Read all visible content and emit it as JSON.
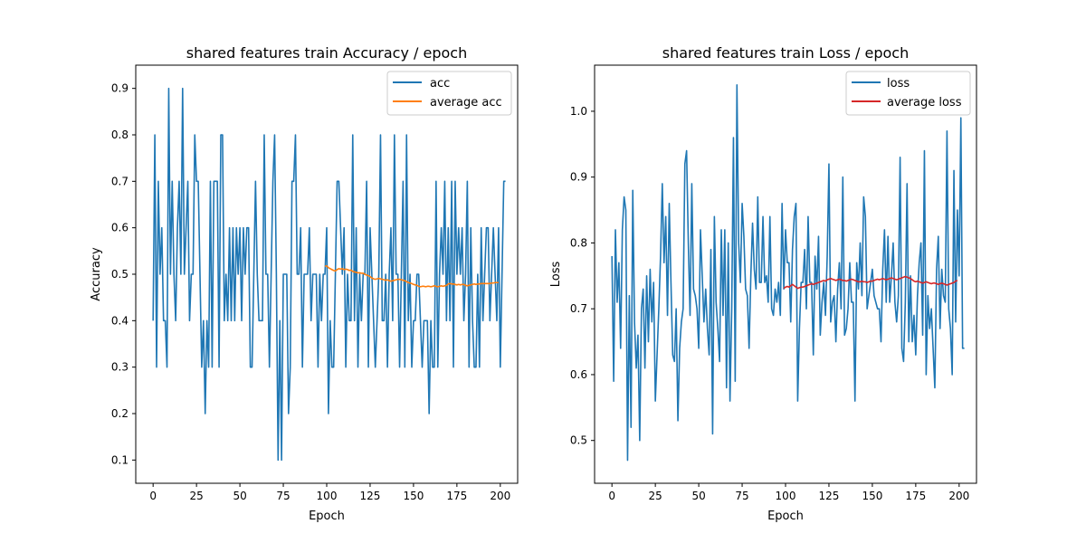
{
  "chart_data": [
    {
      "type": "line",
      "title": "shared features train Accuracy / epoch",
      "xlabel": "Epoch",
      "ylabel": "Accuracy",
      "xlim": [
        -10,
        210
      ],
      "ylim": [
        0.05,
        0.95
      ],
      "xticks": [
        0,
        25,
        50,
        75,
        100,
        125,
        150,
        175,
        200
      ],
      "yticks": [
        0.1,
        0.2,
        0.3,
        0.4,
        0.5,
        0.6,
        0.7,
        0.8,
        0.9
      ],
      "ytick_decimals": 1,
      "grid": false,
      "legend_placement": "top-right",
      "series": [
        {
          "name": "acc",
          "color": "#1f77b4",
          "x_start": 0,
          "values": [
            0.4,
            0.8,
            0.3,
            0.7,
            0.5,
            0.6,
            0.4,
            0.4,
            0.3,
            0.9,
            0.5,
            0.7,
            0.5,
            0.4,
            0.6,
            0.7,
            0.5,
            0.9,
            0.5,
            0.6,
            0.7,
            0.4,
            0.5,
            0.5,
            0.8,
            0.7,
            0.7,
            0.5,
            0.3,
            0.4,
            0.2,
            0.4,
            0.3,
            0.7,
            0.3,
            0.7,
            0.7,
            0.7,
            0.3,
            0.8,
            0.8,
            0.4,
            0.5,
            0.4,
            0.6,
            0.4,
            0.6,
            0.4,
            0.6,
            0.5,
            0.6,
            0.4,
            0.6,
            0.5,
            0.6,
            0.6,
            0.3,
            0.3,
            0.5,
            0.7,
            0.5,
            0.4,
            0.4,
            0.4,
            0.8,
            0.5,
            0.5,
            0.3,
            0.5,
            0.7,
            0.8,
            0.5,
            0.1,
            0.4,
            0.1,
            0.5,
            0.5,
            0.5,
            0.2,
            0.3,
            0.7,
            0.7,
            0.8,
            0.5,
            0.5,
            0.6,
            0.3,
            0.5,
            0.5,
            0.5,
            0.6,
            0.4,
            0.5,
            0.5,
            0.5,
            0.3,
            0.5,
            0.4,
            0.5,
            0.5,
            0.6,
            0.2,
            0.4,
            0.3,
            0.3,
            0.5,
            0.7,
            0.7,
            0.6,
            0.5,
            0.6,
            0.3,
            0.5,
            0.4,
            0.4,
            0.8,
            0.4,
            0.6,
            0.3,
            0.5,
            0.4,
            0.5,
            0.5,
            0.7,
            0.3,
            0.6,
            0.5,
            0.4,
            0.3,
            0.4,
            0.5,
            0.8,
            0.4,
            0.4,
            0.5,
            0.3,
            0.5,
            0.6,
            0.4,
            0.8,
            0.5,
            0.5,
            0.3,
            0.5,
            0.7,
            0.3,
            0.8,
            0.4,
            0.5,
            0.3,
            0.4,
            0.4,
            0.5,
            0.5,
            0.4,
            0.3,
            0.4,
            0.4,
            0.4,
            0.2,
            0.4,
            0.3,
            0.3,
            0.7,
            0.3,
            0.5,
            0.6,
            0.5,
            0.7,
            0.4,
            0.6,
            0.4,
            0.7,
            0.3,
            0.7,
            0.5,
            0.6,
            0.5,
            0.6,
            0.4,
            0.5,
            0.7,
            0.3,
            0.6,
            0.4,
            0.3,
            0.3,
            0.5,
            0.3,
            0.6,
            0.4,
            0.5,
            0.6,
            0.6,
            0.4,
            0.5,
            0.6,
            0.5,
            0.4,
            0.6,
            0.3,
            0.5,
            0.7,
            0.7
          ]
        },
        {
          "name": "average acc",
          "color": "#ff7f0e",
          "x_start": 99,
          "values": [
            0.517,
            0.518,
            0.514,
            0.512,
            0.51,
            0.508,
            0.507,
            0.51,
            0.512,
            0.511,
            0.512,
            0.51,
            0.511,
            0.51,
            0.508,
            0.509,
            0.506,
            0.505,
            0.504,
            0.503,
            0.503,
            0.502,
            0.502,
            0.5,
            0.498,
            0.497,
            0.495,
            0.492,
            0.49,
            0.489,
            0.49,
            0.491,
            0.49,
            0.489,
            0.488,
            0.487,
            0.488,
            0.486,
            0.485,
            0.486,
            0.487,
            0.488,
            0.489,
            0.489,
            0.488,
            0.487,
            0.486,
            0.484,
            0.482,
            0.481,
            0.48,
            0.478,
            0.477,
            0.476,
            0.474,
            0.473,
            0.474,
            0.474,
            0.473,
            0.474,
            0.474,
            0.473,
            0.474,
            0.475,
            0.474,
            0.473,
            0.474,
            0.475,
            0.474,
            0.475,
            0.476,
            0.479,
            0.48,
            0.479,
            0.479,
            0.478,
            0.477,
            0.478,
            0.477,
            0.478,
            0.478,
            0.476,
            0.475,
            0.476,
            0.477,
            0.478,
            0.479,
            0.478,
            0.479,
            0.479,
            0.48,
            0.48,
            0.48,
            0.48,
            0.48,
            0.48,
            0.481,
            0.481,
            0.482,
            0.482,
            0.482
          ]
        }
      ]
    },
    {
      "type": "line",
      "title": "shared features train Loss / epoch",
      "xlabel": "Epoch",
      "ylabel": "Loss",
      "xlim": [
        -10,
        210
      ],
      "ylim": [
        0.435,
        1.07
      ],
      "xticks": [
        0,
        25,
        50,
        75,
        100,
        125,
        150,
        175,
        200
      ],
      "yticks": [
        0.5,
        0.6,
        0.7,
        0.8,
        0.9,
        1.0
      ],
      "ytick_decimals": 1,
      "grid": false,
      "legend_placement": "top-right",
      "series": [
        {
          "name": "loss",
          "color": "#1f77b4",
          "x_start": 0,
          "values": [
            0.78,
            0.59,
            0.82,
            0.71,
            0.77,
            0.64,
            0.82,
            0.87,
            0.85,
            0.47,
            0.72,
            0.52,
            0.88,
            0.68,
            0.61,
            0.66,
            0.5,
            0.7,
            0.73,
            0.61,
            0.75,
            0.65,
            0.76,
            0.68,
            0.74,
            0.56,
            0.63,
            0.7,
            0.78,
            0.89,
            0.77,
            0.84,
            0.69,
            0.86,
            0.74,
            0.63,
            0.62,
            0.7,
            0.53,
            0.64,
            0.68,
            0.7,
            0.92,
            0.94,
            0.8,
            0.69,
            0.89,
            0.73,
            0.72,
            0.7,
            0.64,
            0.82,
            0.75,
            0.68,
            0.73,
            0.67,
            0.63,
            0.79,
            0.51,
            0.84,
            0.71,
            0.67,
            0.62,
            0.82,
            0.69,
            0.82,
            0.58,
            0.8,
            0.56,
            0.7,
            0.96,
            0.59,
            1.04,
            0.8,
            0.74,
            0.86,
            0.81,
            0.73,
            0.72,
            0.64,
            0.75,
            0.83,
            0.76,
            0.73,
            0.87,
            0.74,
            0.74,
            0.84,
            0.74,
            0.75,
            0.71,
            0.84,
            0.7,
            0.69,
            0.73,
            0.71,
            0.74,
            0.69,
            0.86,
            0.73,
            0.82,
            0.77,
            0.77,
            0.68,
            0.79,
            0.84,
            0.86,
            0.56,
            0.67,
            0.74,
            0.74,
            0.79,
            0.7,
            0.84,
            0.74,
            0.74,
            0.63,
            0.78,
            0.73,
            0.81,
            0.66,
            0.71,
            0.74,
            0.69,
            0.78,
            0.92,
            0.68,
            0.71,
            0.72,
            0.65,
            0.73,
            0.77,
            0.7,
            0.9,
            0.66,
            0.67,
            0.7,
            0.77,
            0.71,
            0.71,
            0.56,
            0.77,
            0.73,
            0.8,
            0.72,
            0.87,
            0.84,
            0.7,
            0.72,
            0.74,
            0.76,
            0.72,
            0.71,
            0.7,
            0.7,
            0.65,
            0.76,
            0.82,
            0.71,
            0.81,
            0.71,
            0.75,
            0.8,
            0.71,
            0.68,
            0.72,
            0.93,
            0.64,
            0.62,
            0.71,
            0.89,
            0.65,
            0.75,
            0.65,
            0.69,
            0.63,
            0.72,
            0.77,
            0.8,
            0.66,
            0.94,
            0.6,
            0.72,
            0.67,
            0.7,
            0.64,
            0.58,
            0.76,
            0.81,
            0.67,
            0.76,
            0.72,
            0.71,
            0.97,
            0.7,
            0.67,
            0.6,
            0.91,
            0.68,
            0.85,
            0.75,
            0.99,
            0.64,
            0.64
          ]
        },
        {
          "name": "average loss",
          "color": "#d62728",
          "x_start": 99,
          "values": [
            0.731,
            0.733,
            0.734,
            0.733,
            0.735,
            0.737,
            0.735,
            0.733,
            0.731,
            0.732,
            0.733,
            0.733,
            0.734,
            0.735,
            0.736,
            0.737,
            0.738,
            0.737,
            0.738,
            0.739,
            0.74,
            0.741,
            0.742,
            0.743,
            0.742,
            0.744,
            0.745,
            0.746,
            0.745,
            0.744,
            0.743,
            0.744,
            0.745,
            0.744,
            0.743,
            0.743,
            0.742,
            0.743,
            0.744,
            0.745,
            0.744,
            0.743,
            0.742,
            0.741,
            0.741,
            0.742,
            0.741,
            0.741,
            0.74,
            0.741,
            0.742,
            0.742,
            0.743,
            0.744,
            0.745,
            0.744,
            0.745,
            0.746,
            0.745,
            0.744,
            0.745,
            0.746,
            0.747,
            0.746,
            0.745,
            0.744,
            0.745,
            0.746,
            0.747,
            0.748,
            0.749,
            0.748,
            0.747,
            0.746,
            0.744,
            0.742,
            0.741,
            0.742,
            0.741,
            0.74,
            0.739,
            0.74,
            0.741,
            0.74,
            0.739,
            0.738,
            0.739,
            0.739,
            0.738,
            0.737,
            0.738,
            0.739,
            0.738,
            0.737,
            0.736,
            0.737,
            0.738,
            0.739,
            0.74,
            0.742,
            0.743
          ]
        }
      ]
    }
  ]
}
